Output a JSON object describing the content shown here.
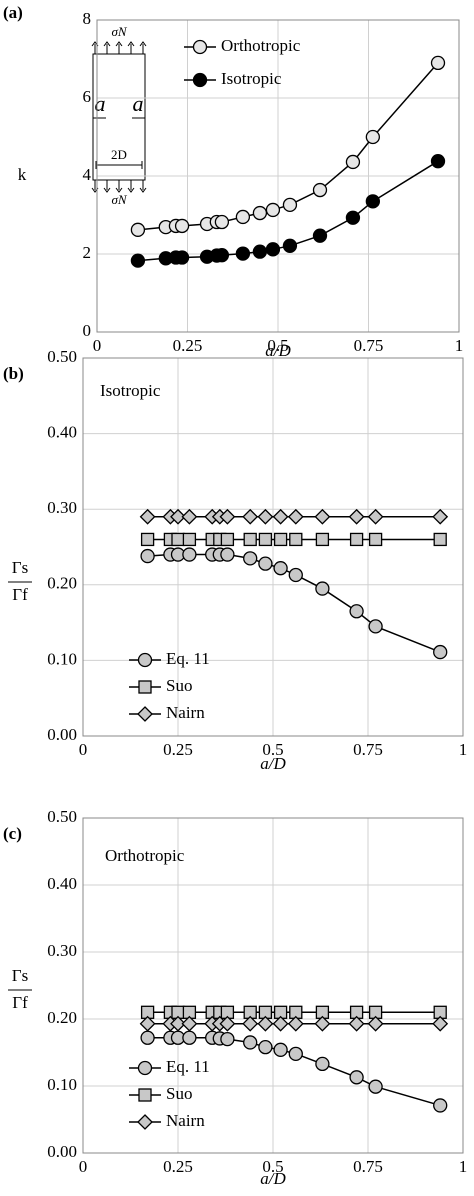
{
  "chart_data": [
    {
      "type": "line",
      "panel_label": "(a)",
      "ylabel": "k",
      "xlabel": "a/D",
      "x": [
        0.113,
        0.19,
        0.218,
        0.235,
        0.304,
        0.331,
        0.345,
        0.403,
        0.45,
        0.486,
        0.533,
        0.616,
        0.707,
        0.762,
        0.942
      ],
      "series": [
        {
          "name": "Orthotropic",
          "color": "#e6e6e6",
          "marker": "circle",
          "values": [
            2.62,
            2.69,
            2.72,
            2.72,
            2.77,
            2.82,
            2.82,
            2.95,
            3.05,
            3.13,
            3.26,
            3.64,
            4.36,
            5.0,
            6.9
          ]
        },
        {
          "name": "Isotropic",
          "color": "#000000",
          "marker": "circle",
          "values": [
            1.83,
            1.89,
            1.91,
            1.91,
            1.93,
            1.96,
            1.97,
            2.01,
            2.06,
            2.12,
            2.21,
            2.47,
            2.93,
            3.35,
            4.38
          ]
        }
      ],
      "xlim": [
        0,
        1
      ],
      "xticks": [
        0,
        0.25,
        0.5,
        0.75,
        1
      ],
      "ylim": [
        0,
        8
      ],
      "yticks": [
        0,
        2,
        4,
        6,
        8
      ],
      "grid": true,
      "legend": "top-right",
      "inset_labels": [
        "σN",
        "a",
        "a",
        "2D",
        "σN"
      ]
    },
    {
      "type": "line",
      "panel_label": "(b)",
      "annotation": "Isotropic",
      "ylabel": [
        "Γs",
        "Γf"
      ],
      "xlabel": "a/D",
      "x": [
        0.17,
        0.23,
        0.25,
        0.28,
        0.34,
        0.36,
        0.38,
        0.44,
        0.48,
        0.52,
        0.56,
        0.63,
        0.72,
        0.77,
        0.94
      ],
      "series": [
        {
          "name": "Eq. 11",
          "color": "#c8c8c8",
          "marker": "circle",
          "values": [
            0.238,
            0.24,
            0.24,
            0.24,
            0.24,
            0.24,
            0.24,
            0.235,
            0.228,
            0.222,
            0.213,
            0.195,
            0.165,
            0.145,
            0.111
          ]
        },
        {
          "name": "Suo",
          "color": "#c8c8c8",
          "marker": "square",
          "values": [
            0.26,
            0.26,
            0.26,
            0.26,
            0.26,
            0.26,
            0.26,
            0.26,
            0.26,
            0.26,
            0.26,
            0.26,
            0.26,
            0.26,
            0.26
          ]
        },
        {
          "name": "Nairn",
          "color": "#c8c8c8",
          "marker": "diamond",
          "values": [
            0.29,
            0.29,
            0.29,
            0.29,
            0.29,
            0.29,
            0.29,
            0.29,
            0.29,
            0.29,
            0.29,
            0.29,
            0.29,
            0.29,
            0.29
          ]
        }
      ],
      "xlim": [
        0,
        1
      ],
      "xticks": [
        0,
        0.25,
        0.5,
        0.75,
        1
      ],
      "ylim": [
        0,
        0.5
      ],
      "yticks": [
        {
          "value": 0,
          "label": "0.00"
        },
        {
          "value": 0.1,
          "label": "0.10"
        },
        {
          "value": 0.2,
          "label": "0.20"
        },
        {
          "value": 0.3,
          "label": "0.30"
        },
        {
          "value": 0.4,
          "label": "0.40"
        },
        {
          "value": 0.5,
          "label": "0.50"
        }
      ],
      "grid": true,
      "legend": "bottom-left"
    },
    {
      "type": "line",
      "panel_label": "(c)",
      "annotation": "Orthotropic",
      "ylabel": [
        "Γs",
        "Γf"
      ],
      "xlabel": "a/D",
      "x": [
        0.17,
        0.23,
        0.25,
        0.28,
        0.34,
        0.36,
        0.38,
        0.44,
        0.48,
        0.52,
        0.56,
        0.63,
        0.72,
        0.77,
        0.94
      ],
      "series": [
        {
          "name": "Eq. 11",
          "color": "#c8c8c8",
          "marker": "circle",
          "values": [
            0.172,
            0.172,
            0.172,
            0.172,
            0.172,
            0.171,
            0.17,
            0.165,
            0.158,
            0.154,
            0.148,
            0.133,
            0.113,
            0.099,
            0.071
          ]
        },
        {
          "name": "Suo",
          "color": "#c8c8c8",
          "marker": "square",
          "values": [
            0.21,
            0.21,
            0.21,
            0.21,
            0.21,
            0.21,
            0.21,
            0.21,
            0.21,
            0.21,
            0.21,
            0.21,
            0.21,
            0.21,
            0.21
          ]
        },
        {
          "name": "Nairn",
          "color": "#c8c8c8",
          "marker": "diamond",
          "values": [
            0.193,
            0.193,
            0.193,
            0.193,
            0.193,
            0.193,
            0.193,
            0.193,
            0.193,
            0.193,
            0.193,
            0.193,
            0.193,
            0.193,
            0.193
          ]
        }
      ],
      "xlim": [
        0,
        1
      ],
      "xticks": [
        0,
        0.25,
        0.5,
        0.75,
        1
      ],
      "ylim": [
        0,
        0.5
      ],
      "yticks": [
        {
          "value": 0,
          "label": "0.00"
        },
        {
          "value": 0.1,
          "label": "0.10"
        },
        {
          "value": 0.2,
          "label": "0.20"
        },
        {
          "value": 0.3,
          "label": "0.30"
        },
        {
          "value": 0.4,
          "label": "0.40"
        },
        {
          "value": 0.5,
          "label": "0.50"
        }
      ],
      "grid": true,
      "legend": "bottom-left"
    }
  ]
}
